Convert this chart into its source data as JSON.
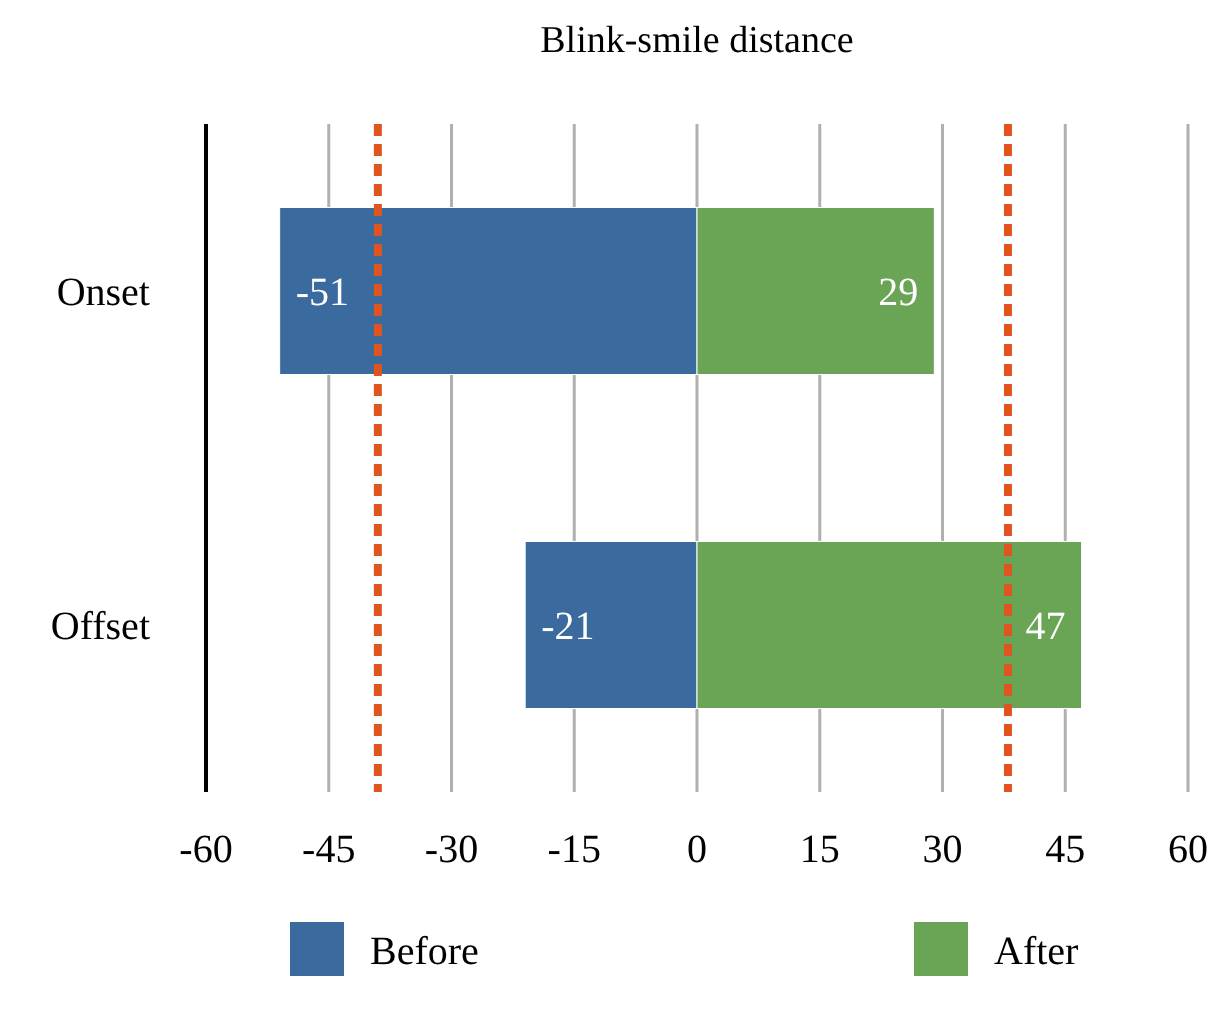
{
  "chart_data": {
    "type": "bar",
    "title": "Blink-smile distance",
    "orientation": "horizontal",
    "stacked": true,
    "categories": [
      "Onset",
      "Offset"
    ],
    "series": [
      {
        "name": "Before",
        "color": "#3a6a9e",
        "values": [
          -51,
          -21
        ]
      },
      {
        "name": "After",
        "color": "#6aa556",
        "values": [
          29,
          47
        ]
      }
    ],
    "xlim": [
      -60,
      60
    ],
    "xticks": [
      -60,
      -45,
      -30,
      -15,
      0,
      15,
      30,
      45,
      60
    ],
    "grid": "x",
    "data_labels": true,
    "legend": "bottom",
    "ref_lines": [
      {
        "axis": "x",
        "value": -39,
        "color": "#e0551f",
        "line_style": "dashed"
      },
      {
        "axis": "x",
        "value": 38,
        "color": "#e0551f",
        "line_style": "dashed"
      }
    ]
  }
}
